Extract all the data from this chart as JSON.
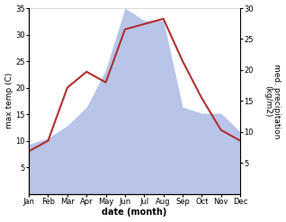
{
  "months": [
    "Jan",
    "Feb",
    "Mar",
    "Apr",
    "May",
    "Jun",
    "Jul",
    "Aug",
    "Sep",
    "Oct",
    "Nov",
    "Dec"
  ],
  "x": [
    1,
    2,
    3,
    4,
    5,
    6,
    7,
    8,
    9,
    10,
    11,
    12
  ],
  "temperature": [
    8,
    10,
    20,
    23,
    21,
    31,
    32,
    33,
    25,
    18,
    12,
    10
  ],
  "precipitation": [
    8,
    9,
    11,
    14,
    20,
    30,
    28,
    28,
    14,
    13,
    13,
    10
  ],
  "temp_color": "#b03030",
  "precip_fill_color": "#b8c4e8",
  "bg_color": "#ffffff",
  "left_ylim": [
    0,
    35
  ],
  "right_ylim": [
    0,
    30
  ],
  "left_yticks": [
    5,
    10,
    15,
    20,
    25,
    30,
    35
  ],
  "right_yticks": [
    5,
    10,
    15,
    20,
    25,
    30
  ],
  "xlabel": "date (month)",
  "ylabel_left": "max temp (C)",
  "ylabel_right": "med. precipitation\n(kg/m2)"
}
